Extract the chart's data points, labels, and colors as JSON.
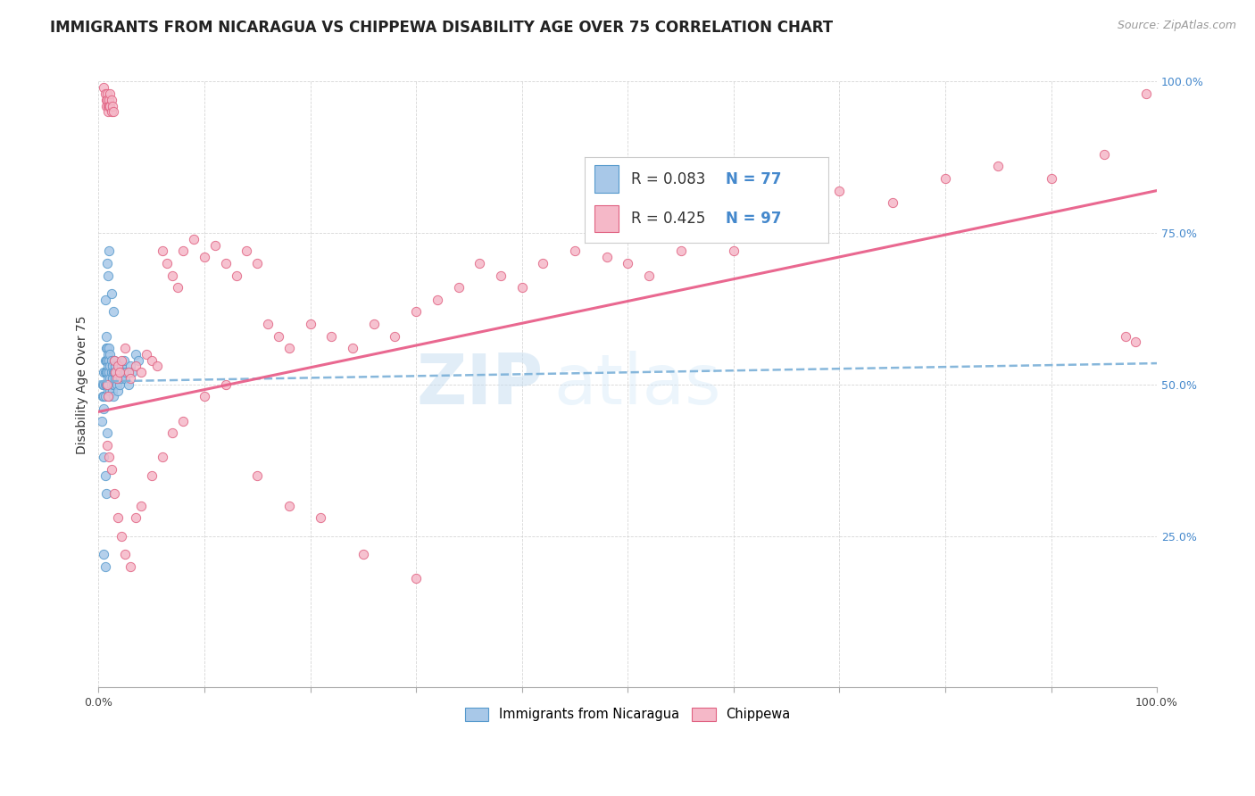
{
  "title": "IMMIGRANTS FROM NICARAGUA VS CHIPPEWA DISABILITY AGE OVER 75 CORRELATION CHART",
  "source": "Source: ZipAtlas.com",
  "ylabel": "Disability Age Over 75",
  "legend_label1": "Immigrants from Nicaragua",
  "legend_label2": "Chippewa",
  "R1": "0.083",
  "N1": "77",
  "R2": "0.425",
  "N2": "97",
  "blue_fill": "#a8c8e8",
  "blue_edge": "#5599cc",
  "pink_fill": "#f5b8c8",
  "pink_edge": "#e06080",
  "blue_line": "#7ab0d8",
  "pink_line": "#e8608a",
  "title_fontsize": 12,
  "label_fontsize": 10,
  "tick_fontsize": 9,
  "source_fontsize": 9,
  "watermark_zip": "ZIP",
  "watermark_atlas": "atlas",
  "blue_scatter_x": [
    0.003,
    0.004,
    0.004,
    0.005,
    0.005,
    0.005,
    0.005,
    0.006,
    0.006,
    0.006,
    0.006,
    0.007,
    0.007,
    0.007,
    0.007,
    0.007,
    0.008,
    0.008,
    0.008,
    0.008,
    0.009,
    0.009,
    0.009,
    0.009,
    0.01,
    0.01,
    0.01,
    0.01,
    0.01,
    0.011,
    0.011,
    0.011,
    0.011,
    0.012,
    0.012,
    0.012,
    0.013,
    0.013,
    0.013,
    0.014,
    0.014,
    0.014,
    0.015,
    0.015,
    0.015,
    0.016,
    0.016,
    0.017,
    0.017,
    0.018,
    0.018,
    0.019,
    0.02,
    0.02,
    0.021,
    0.022,
    0.023,
    0.024,
    0.025,
    0.026,
    0.028,
    0.03,
    0.032,
    0.035,
    0.038,
    0.006,
    0.008,
    0.009,
    0.01,
    0.012,
    0.014,
    0.005,
    0.006,
    0.007,
    0.005,
    0.006,
    0.008
  ],
  "blue_scatter_y": [
    0.44,
    0.5,
    0.48,
    0.52,
    0.5,
    0.48,
    0.46,
    0.54,
    0.52,
    0.5,
    0.48,
    0.58,
    0.56,
    0.54,
    0.52,
    0.5,
    0.56,
    0.54,
    0.52,
    0.5,
    0.55,
    0.53,
    0.51,
    0.49,
    0.56,
    0.54,
    0.52,
    0.5,
    0.48,
    0.55,
    0.53,
    0.51,
    0.49,
    0.54,
    0.52,
    0.5,
    0.53,
    0.51,
    0.49,
    0.52,
    0.5,
    0.48,
    0.54,
    0.52,
    0.5,
    0.53,
    0.51,
    0.52,
    0.5,
    0.51,
    0.49,
    0.53,
    0.52,
    0.5,
    0.51,
    0.53,
    0.52,
    0.54,
    0.51,
    0.52,
    0.5,
    0.53,
    0.52,
    0.55,
    0.54,
    0.64,
    0.7,
    0.68,
    0.72,
    0.65,
    0.62,
    0.38,
    0.35,
    0.32,
    0.22,
    0.2,
    0.42
  ],
  "pink_scatter_x": [
    0.005,
    0.006,
    0.007,
    0.007,
    0.008,
    0.008,
    0.009,
    0.009,
    0.01,
    0.01,
    0.011,
    0.011,
    0.012,
    0.012,
    0.013,
    0.014,
    0.015,
    0.016,
    0.017,
    0.018,
    0.02,
    0.022,
    0.025,
    0.028,
    0.03,
    0.035,
    0.04,
    0.045,
    0.05,
    0.055,
    0.06,
    0.065,
    0.07,
    0.075,
    0.08,
    0.09,
    0.1,
    0.11,
    0.12,
    0.13,
    0.14,
    0.15,
    0.16,
    0.17,
    0.18,
    0.2,
    0.22,
    0.24,
    0.26,
    0.28,
    0.3,
    0.32,
    0.34,
    0.36,
    0.38,
    0.4,
    0.42,
    0.45,
    0.48,
    0.5,
    0.52,
    0.55,
    0.58,
    0.6,
    0.65,
    0.7,
    0.75,
    0.8,
    0.85,
    0.9,
    0.95,
    0.97,
    0.98,
    0.99,
    0.008,
    0.01,
    0.012,
    0.015,
    0.018,
    0.022,
    0.025,
    0.03,
    0.035,
    0.04,
    0.05,
    0.06,
    0.07,
    0.08,
    0.1,
    0.12,
    0.15,
    0.18,
    0.21,
    0.25,
    0.3,
    0.008,
    0.009
  ],
  "pink_scatter_y": [
    0.99,
    0.98,
    0.97,
    0.96,
    0.98,
    0.97,
    0.96,
    0.95,
    0.97,
    0.96,
    0.98,
    0.96,
    0.95,
    0.97,
    0.96,
    0.95,
    0.54,
    0.52,
    0.51,
    0.53,
    0.52,
    0.54,
    0.56,
    0.52,
    0.51,
    0.53,
    0.52,
    0.55,
    0.54,
    0.53,
    0.72,
    0.7,
    0.68,
    0.66,
    0.72,
    0.74,
    0.71,
    0.73,
    0.7,
    0.68,
    0.72,
    0.7,
    0.6,
    0.58,
    0.56,
    0.6,
    0.58,
    0.56,
    0.6,
    0.58,
    0.62,
    0.64,
    0.66,
    0.7,
    0.68,
    0.66,
    0.7,
    0.72,
    0.71,
    0.7,
    0.68,
    0.72,
    0.75,
    0.72,
    0.78,
    0.82,
    0.8,
    0.84,
    0.86,
    0.84,
    0.88,
    0.58,
    0.57,
    0.98,
    0.4,
    0.38,
    0.36,
    0.32,
    0.28,
    0.25,
    0.22,
    0.2,
    0.28,
    0.3,
    0.35,
    0.38,
    0.42,
    0.44,
    0.48,
    0.5,
    0.35,
    0.3,
    0.28,
    0.22,
    0.18,
    0.5,
    0.48
  ]
}
